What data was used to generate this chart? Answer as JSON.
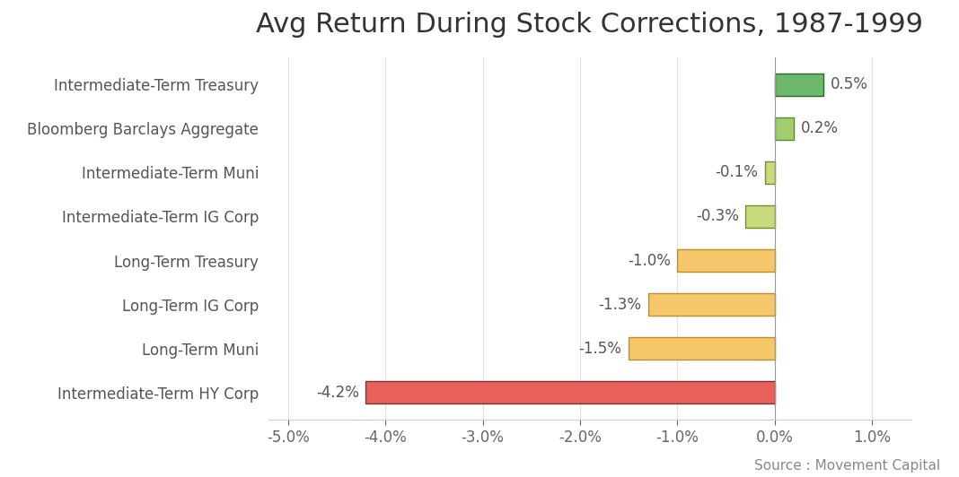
{
  "title": "Avg Return During Stock Corrections, 1987-1999",
  "categories": [
    "Intermediate-Term HY Corp",
    "Long-Term Muni",
    "Long-Term IG Corp",
    "Long-Term Treasury",
    "Intermediate-Term IG Corp",
    "Intermediate-Term Muni",
    "Bloomberg Barclays Aggregate",
    "Intermediate-Term Treasury"
  ],
  "values": [
    -4.2,
    -1.5,
    -1.3,
    -1.0,
    -0.3,
    -0.1,
    0.2,
    0.5
  ],
  "bar_colors": [
    "#e8605a",
    "#f5c76a",
    "#f5c76a",
    "#f5c76a",
    "#c8db7a",
    "#c8db7a",
    "#a3cd6e",
    "#6db86b"
  ],
  "bar_edgecolors": [
    "#7a3535",
    "#b89030",
    "#b89030",
    "#b89030",
    "#7a8a30",
    "#7a8a30",
    "#5a8a30",
    "#2a6a2a"
  ],
  "label_values": [
    "-4.2%",
    "-1.5%",
    "-1.3%",
    "-1.0%",
    "-0.3%",
    "-0.1%",
    "0.2%",
    "0.5%"
  ],
  "xlim": [
    -5.2,
    1.4
  ],
  "xticks": [
    -5.0,
    -4.0,
    -3.0,
    -2.0,
    -1.0,
    0.0,
    1.0
  ],
  "xtick_labels": [
    "-5.0%",
    "-4.0%",
    "-3.0%",
    "-2.0%",
    "-1.0%",
    "0.0%",
    "1.0%"
  ],
  "source_text": "Source : Movement Capital",
  "background_color": "#ffffff",
  "title_fontsize": 22,
  "label_fontsize": 12,
  "tick_fontsize": 12,
  "source_fontsize": 11,
  "bar_height": 0.5
}
